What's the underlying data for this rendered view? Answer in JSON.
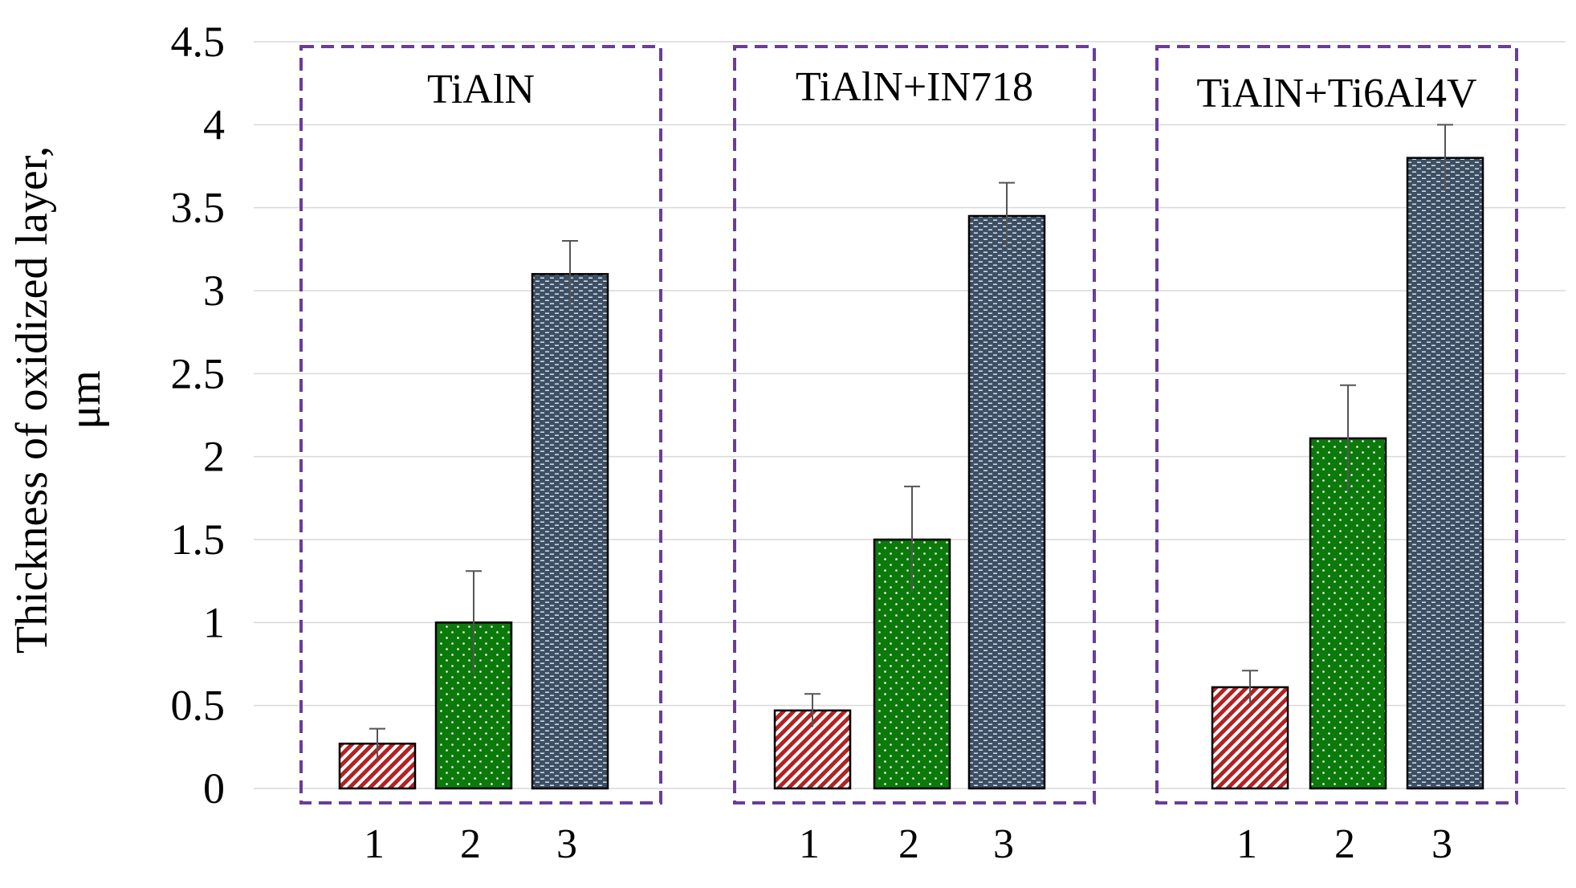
{
  "chart_data": {
    "type": "bar",
    "title": "",
    "xlabel": "",
    "ylabel_lines": [
      "Thickness of oxidized layer,",
      "μm"
    ],
    "ylim": [
      0,
      4.5
    ],
    "yticks": [
      0,
      0.5,
      1,
      1.5,
      2,
      2.5,
      3,
      3.5,
      4,
      4.5
    ],
    "ytick_labels": [
      "0",
      "0.5",
      "1",
      "1.5",
      "2",
      "2.5",
      "3",
      "3.5",
      "4",
      "4.5"
    ],
    "grid": true,
    "groups": [
      {
        "name": "TiAlN",
        "categories": [
          "1",
          "2",
          "3"
        ],
        "values": [
          0.27,
          1.0,
          3.1
        ],
        "errors": [
          0.09,
          0.31,
          0.2
        ]
      },
      {
        "name": "TiAlN+IN718",
        "categories": [
          "1",
          "2",
          "3"
        ],
        "values": [
          0.47,
          1.5,
          3.45
        ],
        "errors": [
          0.1,
          0.32,
          0.2
        ]
      },
      {
        "name": "TiAlN+Ti6Al4V",
        "categories": [
          "1",
          "2",
          "3"
        ],
        "values": [
          0.61,
          2.11,
          3.8
        ],
        "errors": [
          0.1,
          0.32,
          0.2
        ]
      }
    ],
    "bar_colors": [
      "#b22222",
      "#0b7a0b",
      "#3c4f64"
    ],
    "bar_patterns": [
      "hatch",
      "dots",
      "dash-dots"
    ],
    "group_box_color": "#6a3d9a"
  }
}
